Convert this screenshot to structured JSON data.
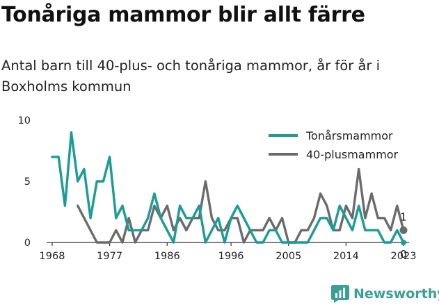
{
  "header": {
    "title": "Tonåriga mammor blir allt färre",
    "subtitle": "Antal barn till 40-plus- och tonåriga mammor, år för år i Boxholms kommun"
  },
  "brand": {
    "name": "Newsworthy",
    "icon": "bar-chart-icon",
    "color": "#3aa095"
  },
  "chart_data": {
    "type": "line",
    "title": "Tonåriga mammor blir allt färre",
    "subtitle": "Antal barn till 40-plus- och tonåriga mammor, år för år i Boxholms kommun",
    "xlabel": "",
    "ylabel": "",
    "xlim": [
      1968,
      2023
    ],
    "ylim": [
      0,
      10
    ],
    "x_ticks": [
      "1968",
      "1977",
      "1986",
      "1996",
      "2005",
      "2014",
      "2023"
    ],
    "x_tick_values": [
      1968,
      1977,
      1986,
      1996,
      2005,
      2014,
      2023
    ],
    "y_ticks": [
      "0",
      "5",
      "10"
    ],
    "y_tick_values": [
      0,
      5,
      10
    ],
    "grid": false,
    "legend": "top-right",
    "series": [
      {
        "name": "Tonårsmammor",
        "color": "#1a9e93",
        "x": [
          1968,
          1969,
          1970,
          1971,
          1972,
          1973,
          1974,
          1975,
          1976,
          1977,
          1978,
          1979,
          1980,
          1981,
          1982,
          1983,
          1984,
          1985,
          1986,
          1987,
          1988,
          1989,
          1990,
          1991,
          1992,
          1993,
          1994,
          1995,
          1996,
          1997,
          1998,
          1999,
          2000,
          2001,
          2002,
          2003,
          2004,
          2005,
          2006,
          2007,
          2008,
          2009,
          2010,
          2011,
          2012,
          2013,
          2014,
          2015,
          2016,
          2017,
          2018,
          2019,
          2020,
          2021,
          2022,
          2023
        ],
        "values": [
          7,
          7,
          3,
          9,
          5,
          6,
          2,
          5,
          5,
          7,
          2,
          3,
          1,
          1,
          1,
          2,
          4,
          2,
          1,
          0,
          3,
          2,
          2,
          3,
          0,
          1,
          2,
          0,
          2,
          3,
          2,
          1,
          0,
          0,
          1,
          1,
          0,
          0,
          0,
          0,
          0,
          1,
          2,
          2,
          1,
          3,
          2,
          1,
          3,
          1,
          1,
          1,
          0,
          0,
          1,
          0
        ]
      },
      {
        "name": "40-plusmammor",
        "color": "#6b6b6e",
        "x": [
          1972,
          1973,
          1974,
          1975,
          1976,
          1977,
          1978,
          1979,
          1980,
          1981,
          1982,
          1983,
          1984,
          1985,
          1986,
          1987,
          1988,
          1989,
          1990,
          1991,
          1992,
          1993,
          1994,
          1995,
          1996,
          1997,
          1998,
          1999,
          2000,
          2001,
          2002,
          2003,
          2004,
          2005,
          2006,
          2007,
          2008,
          2009,
          2010,
          2011,
          2012,
          2013,
          2014,
          2015,
          2016,
          2017,
          2018,
          2019,
          2020,
          2021,
          2022,
          2023
        ],
        "values": [
          3,
          2,
          1,
          0,
          0,
          0,
          1,
          0,
          2,
          0,
          1,
          1,
          3,
          2,
          3,
          1,
          2,
          1,
          2,
          2,
          5,
          2,
          1,
          1,
          2,
          2,
          0,
          1,
          1,
          1,
          2,
          1,
          2,
          0,
          0,
          1,
          1,
          2,
          4,
          3,
          1,
          1,
          3,
          2,
          6,
          2,
          4,
          2,
          2,
          1,
          3,
          1
        ]
      }
    ],
    "end_labels": [
      {
        "series": "40-plusmammor",
        "text": "1"
      },
      {
        "series": "Tonårsmammor",
        "text": "0"
      }
    ]
  }
}
